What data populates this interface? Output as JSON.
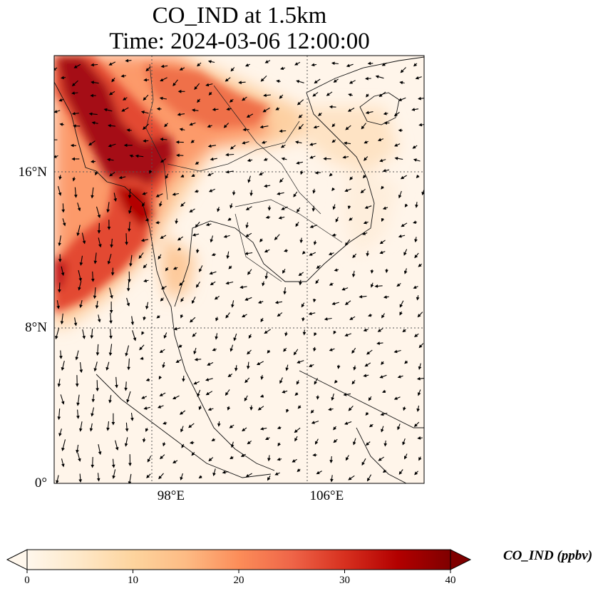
{
  "title_line1": "CO_IND at 1.5km",
  "title_line2": "Time: 2024-03-06 12:00:00",
  "map": {
    "lon_range": [
      92,
      111
    ],
    "lat_range": [
      0,
      22
    ],
    "lat_ticks": [
      {
        "value": 16,
        "label": "16°N"
      },
      {
        "value": 8,
        "label": "8°N"
      },
      {
        "value": 0,
        "label": "0°"
      }
    ],
    "lon_ticks": [
      {
        "value": 98,
        "label": "98°E"
      },
      {
        "value": 106,
        "label": "106°E"
      }
    ],
    "gridlines": "dotted",
    "vectors": "wind arrows"
  },
  "colorbar": {
    "label": "CO_IND (ppbv)",
    "min": 0,
    "max": 40,
    "extend": "both",
    "colormap": "OrRd",
    "ticks": [
      "0",
      "10",
      "20",
      "30",
      "40"
    ],
    "colors": [
      "#fff7ec",
      "#fee8c8",
      "#fdd49e",
      "#fdbb84",
      "#fc8d59",
      "#ef6548",
      "#d7301f",
      "#b30000",
      "#7f0000"
    ]
  }
}
